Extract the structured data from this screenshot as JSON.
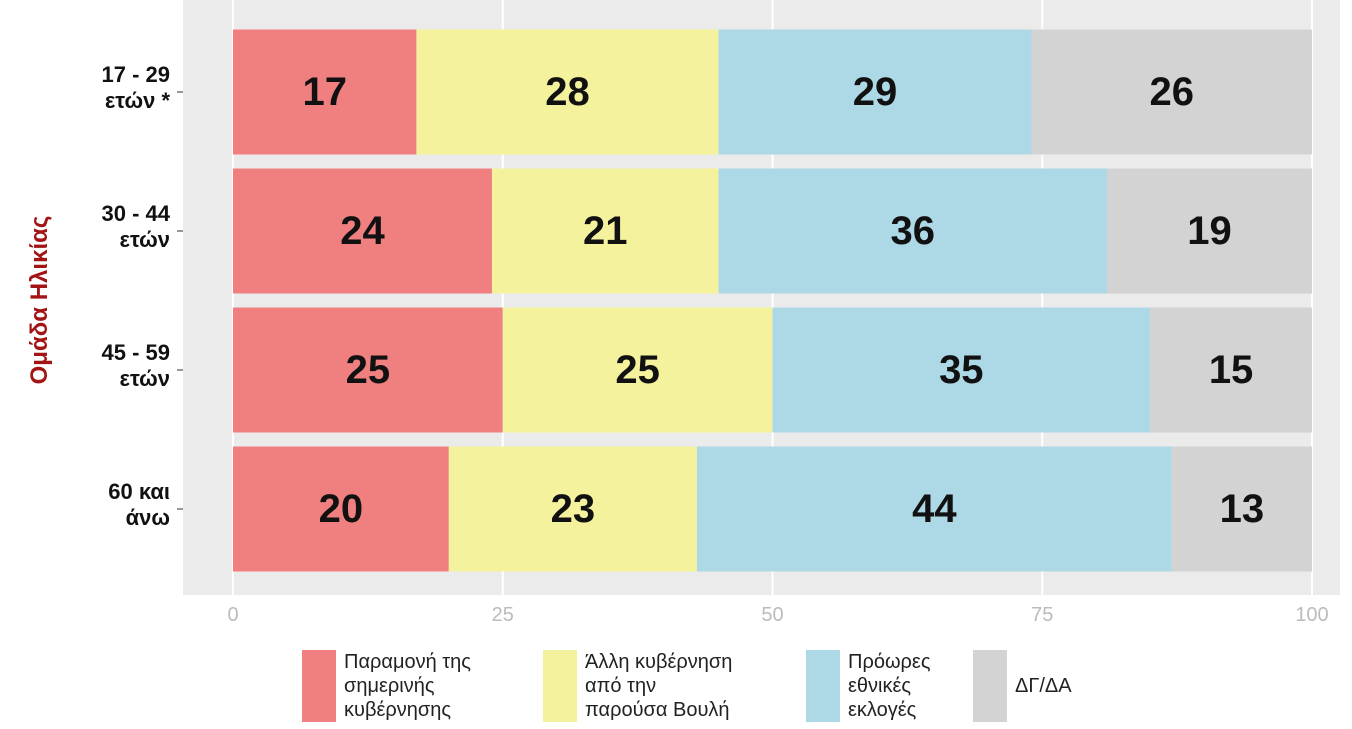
{
  "chart_data": {
    "type": "stacked_barh",
    "y_label": "Ομάδα Ηλικίας",
    "categories": [
      "17 - 29\nετών *",
      "30 - 44\nετών",
      "45 - 59\nετών",
      "60 και\nάνω"
    ],
    "series": [
      {
        "name": "Παραμονή της\nσημερινής\nκυβέρνησης",
        "color": "#f08080",
        "values": [
          17,
          24,
          25,
          20
        ]
      },
      {
        "name": "Άλλη κυβέρνηση\nαπό την\nπαρούσα Βουλή",
        "color": "#f5f29e",
        "values": [
          28,
          21,
          25,
          23
        ]
      },
      {
        "name": "Πρόωρες\nεθνικές\nεκλογές",
        "color": "#add8e6",
        "values": [
          29,
          36,
          35,
          44
        ]
      },
      {
        "name": "ΔΓ/ΔΑ",
        "color": "#d3d3d3",
        "values": [
          26,
          19,
          15,
          13
        ]
      }
    ],
    "xlim": [
      0,
      100
    ],
    "xticks": [
      0,
      25,
      50,
      75,
      100
    ],
    "grid": true,
    "legend": "bottom"
  }
}
